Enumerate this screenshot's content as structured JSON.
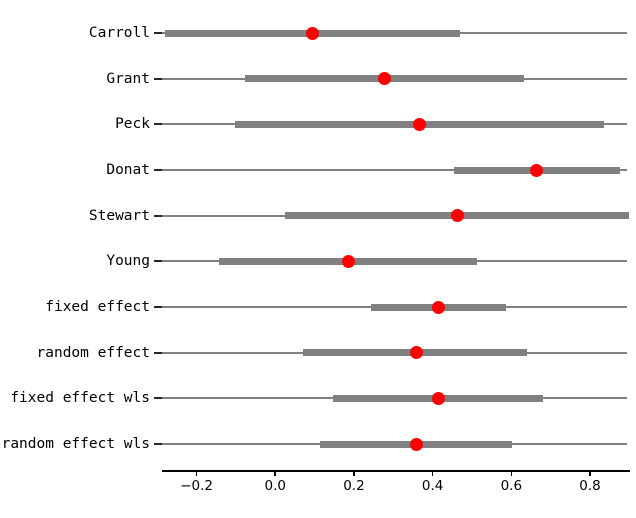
{
  "figure": {
    "background": "#ffffff"
  },
  "chart_data": {
    "type": "scatter",
    "variant": "forest-plot-dot-interval",
    "title": "",
    "xlabel": "",
    "ylabel": "",
    "legend": null,
    "grid": false,
    "guide_line_full_width": true,
    "xlim": [
      -0.288,
      0.894
    ],
    "xticks": [
      -0.2,
      0.0,
      0.2,
      0.4,
      0.6,
      0.8
    ],
    "xtick_labels": [
      "−0.2",
      "0.0",
      "0.2",
      "0.4",
      "0.6",
      "0.8"
    ],
    "rows": [
      {
        "label": "Carroll",
        "estimate": 0.095,
        "ci_low": -0.281,
        "ci_high": 0.47
      },
      {
        "label": "Grant",
        "estimate": 0.277,
        "ci_low": -0.077,
        "ci_high": 0.632
      },
      {
        "label": "Peck",
        "estimate": 0.367,
        "ci_low": -0.102,
        "ci_high": 0.836
      },
      {
        "label": "Donat",
        "estimate": 0.664,
        "ci_low": 0.453,
        "ci_high": 0.876
      },
      {
        "label": "Stewart",
        "estimate": 0.462,
        "ci_low": 0.025,
        "ci_high": 0.899
      },
      {
        "label": "Young",
        "estimate": 0.185,
        "ci_low": -0.142,
        "ci_high": 0.513
      },
      {
        "label": "fixed effect",
        "estimate": 0.415,
        "ci_low": 0.243,
        "ci_high": 0.587
      },
      {
        "label": "random effect",
        "estimate": 0.359,
        "ci_low": 0.071,
        "ci_high": 0.64
      },
      {
        "label": "fixed effect wls",
        "estimate": 0.415,
        "ci_low": 0.146,
        "ci_high": 0.68
      },
      {
        "label": "random effect wls",
        "estimate": 0.359,
        "ci_low": 0.113,
        "ci_high": 0.601
      }
    ],
    "colors": {
      "interval": "#808080",
      "guide": "#808080",
      "marker": "#ff0000",
      "axis": "#000000",
      "text": "#000000"
    }
  }
}
